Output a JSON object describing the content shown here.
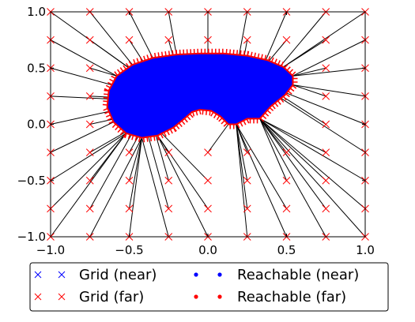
{
  "chart_data": {
    "type": "scatter",
    "title": "",
    "xlabel": "",
    "ylabel": "",
    "xlim": [
      -1.0,
      1.0
    ],
    "ylim": [
      -1.0,
      1.0
    ],
    "xticks": [
      "-1.0",
      "-0.5",
      "0.0",
      "0.5",
      "1.0"
    ],
    "yticks": [
      "-1.0",
      "-0.5",
      "0.0",
      "0.5",
      "1.0"
    ],
    "grid": false,
    "legend_position": "bottom",
    "series": [
      {
        "name": "Grid (near)",
        "marker": "x",
        "color": "#0000ff",
        "points": []
      },
      {
        "name": "Grid (far)",
        "marker": "x",
        "color": "#ff0000",
        "points": [
          [
            -1.0,
            1.0
          ],
          [
            -0.75,
            1.0
          ],
          [
            -0.5,
            1.0
          ],
          [
            -0.25,
            1.0
          ],
          [
            0.0,
            1.0
          ],
          [
            0.25,
            1.0
          ],
          [
            0.5,
            1.0
          ],
          [
            0.75,
            1.0
          ],
          [
            1.0,
            1.0
          ],
          [
            -1.0,
            0.75
          ],
          [
            -0.75,
            0.75
          ],
          [
            -0.5,
            0.75
          ],
          [
            -0.25,
            0.75
          ],
          [
            0.0,
            0.75
          ],
          [
            0.25,
            0.75
          ],
          [
            0.5,
            0.75
          ],
          [
            0.75,
            0.75
          ],
          [
            1.0,
            0.75
          ],
          [
            -1.0,
            0.5
          ],
          [
            -0.75,
            0.5
          ],
          [
            0.75,
            0.5
          ],
          [
            1.0,
            0.5
          ],
          [
            -1.0,
            0.25
          ],
          [
            -0.75,
            0.25
          ],
          [
            0.75,
            0.25
          ],
          [
            1.0,
            0.25
          ],
          [
            -1.0,
            0.0
          ],
          [
            -0.75,
            0.0
          ],
          [
            0.75,
            0.0
          ],
          [
            1.0,
            0.0
          ],
          [
            -1.0,
            -0.25
          ],
          [
            -0.75,
            -0.25
          ],
          [
            -0.5,
            -0.25
          ],
          [
            -0.25,
            -0.25
          ],
          [
            0.0,
            -0.25
          ],
          [
            0.25,
            -0.25
          ],
          [
            0.5,
            -0.25
          ],
          [
            0.75,
            -0.25
          ],
          [
            1.0,
            -0.25
          ],
          [
            -1.0,
            -0.5
          ],
          [
            -0.75,
            -0.5
          ],
          [
            -0.5,
            -0.5
          ],
          [
            -0.25,
            -0.5
          ],
          [
            0.0,
            -0.5
          ],
          [
            0.25,
            -0.5
          ],
          [
            0.5,
            -0.5
          ],
          [
            0.75,
            -0.5
          ],
          [
            1.0,
            -0.5
          ],
          [
            -1.0,
            -0.75
          ],
          [
            -0.75,
            -0.75
          ],
          [
            -0.5,
            -0.75
          ],
          [
            -0.25,
            -0.75
          ],
          [
            0.0,
            -0.75
          ],
          [
            0.25,
            -0.75
          ],
          [
            0.5,
            -0.75
          ],
          [
            0.75,
            -0.75
          ],
          [
            1.0,
            -0.75
          ],
          [
            -1.0,
            -1.0
          ],
          [
            -0.75,
            -1.0
          ],
          [
            -0.5,
            -1.0
          ],
          [
            -0.25,
            -1.0
          ],
          [
            0.0,
            -1.0
          ],
          [
            0.25,
            -1.0
          ],
          [
            0.5,
            -1.0
          ],
          [
            0.75,
            -1.0
          ],
          [
            1.0,
            -1.0
          ]
        ]
      },
      {
        "name": "Reachable (near)",
        "marker": "o",
        "color": "#0000ff"
      },
      {
        "name": "Reachable (far)",
        "marker": "o",
        "color": "#ff0000"
      }
    ],
    "reachable_region": {
      "fill": "#0000ff",
      "edge_color": "#ff0000",
      "boundary": [
        [
          0.33,
          0.05
        ],
        [
          0.4,
          0.16
        ],
        [
          0.49,
          0.26
        ],
        [
          0.54,
          0.35
        ],
        [
          0.54,
          0.43
        ],
        [
          0.48,
          0.51
        ],
        [
          0.38,
          0.57
        ],
        [
          0.25,
          0.61
        ],
        [
          0.1,
          0.63
        ],
        [
          -0.05,
          0.63
        ],
        [
          -0.2,
          0.62
        ],
        [
          -0.35,
          0.59
        ],
        [
          -0.48,
          0.53
        ],
        [
          -0.58,
          0.43
        ],
        [
          -0.63,
          0.3
        ],
        [
          -0.64,
          0.15
        ],
        [
          -0.6,
          0.02
        ],
        [
          -0.52,
          -0.08
        ],
        [
          -0.42,
          -0.12
        ],
        [
          -0.32,
          -0.1
        ],
        [
          -0.22,
          -0.03
        ],
        [
          -0.15,
          0.05
        ],
        [
          -0.1,
          0.11
        ],
        [
          -0.05,
          0.13
        ],
        [
          0.02,
          0.12
        ],
        [
          0.08,
          0.07
        ],
        [
          0.13,
          0.0
        ],
        [
          0.18,
          0.0
        ],
        [
          0.25,
          0.05
        ],
        [
          0.33,
          0.05
        ]
      ]
    }
  },
  "legend": {
    "items": [
      {
        "label": "Grid (near)",
        "marker": "x",
        "color": "#0000ff"
      },
      {
        "label": "Grid (far)",
        "marker": "x",
        "color": "#ff0000"
      },
      {
        "label": "Reachable (near)",
        "marker": "o",
        "color": "#0000ff"
      },
      {
        "label": "Reachable (far)",
        "marker": "o",
        "color": "#ff0000"
      }
    ]
  }
}
